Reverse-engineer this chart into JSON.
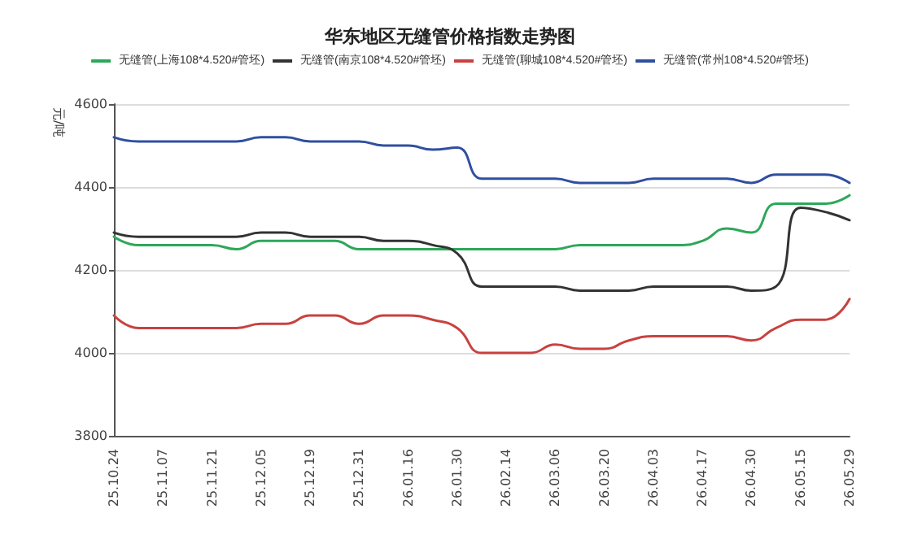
{
  "chart_data": {
    "type": "line",
    "title": "华东地区无缝管价格指数走势图",
    "ylabel": "元/吨",
    "categories": [
      "25.10.24",
      null,
      "25.11.07",
      null,
      "25.11.21",
      null,
      "25.12.05",
      null,
      "25.12.19",
      null,
      "25.12.31",
      null,
      "26.01.16",
      null,
      "26.01.30",
      null,
      "26.02.14",
      null,
      "26.03.06",
      null,
      "26.03.20",
      null,
      "26.04.03",
      null,
      "26.04.17",
      null,
      "26.04.30",
      null,
      "26.05.15",
      null,
      "26.05.29"
    ],
    "series": [
      {
        "name": "无缝管(上海108*4.520#管坯)",
        "color": "#2ea75a",
        "values": [
          4280,
          4260,
          4260,
          4260,
          4260,
          4250,
          4270,
          4270,
          4270,
          4270,
          4250,
          4250,
          4250,
          4250,
          4250,
          4250,
          4250,
          4250,
          4250,
          4260,
          4260,
          4260,
          4260,
          4260,
          4270,
          4300,
          4290,
          4360,
          4360,
          4360,
          4380
        ]
      },
      {
        "name": "无缝管(南京108*4.520#管坯)",
        "color": "#333333",
        "values": [
          4290,
          4280,
          4280,
          4280,
          4280,
          4280,
          4290,
          4290,
          4280,
          4280,
          4280,
          4270,
          4270,
          4260,
          4240,
          4160,
          4160,
          4160,
          4160,
          4150,
          4150,
          4150,
          4160,
          4160,
          4160,
          4160,
          4150,
          4160,
          4350,
          4340,
          4320
        ]
      },
      {
        "name": "无缝管(聊城108*4.520#管坯)",
        "color": "#c8423f",
        "values": [
          4090,
          4060,
          4060,
          4060,
          4060,
          4060,
          4070,
          4070,
          4090,
          4090,
          4070,
          4090,
          4090,
          4080,
          4060,
          4000,
          4000,
          4000,
          4020,
          4010,
          4010,
          4030,
          4040,
          4040,
          4040,
          4040,
          4030,
          4060,
          4080,
          4080,
          4130
        ]
      },
      {
        "name": "无缝管(常州108*4.520#管坯)",
        "color": "#2f4f9f",
        "values": [
          4520,
          4510,
          4510,
          4510,
          4510,
          4510,
          4520,
          4520,
          4510,
          4510,
          4510,
          4500,
          4500,
          4490,
          4495,
          4420,
          4420,
          4420,
          4420,
          4410,
          4410,
          4410,
          4420,
          4420,
          4420,
          4420,
          4410,
          4430,
          4430,
          4430,
          4410
        ]
      }
    ],
    "ylim": [
      3800,
      4600
    ],
    "yticks": [
      3800,
      4000,
      4200,
      4400,
      4600
    ],
    "grid": "y",
    "legend": "top",
    "marker": "none",
    "line_style": "solid"
  }
}
